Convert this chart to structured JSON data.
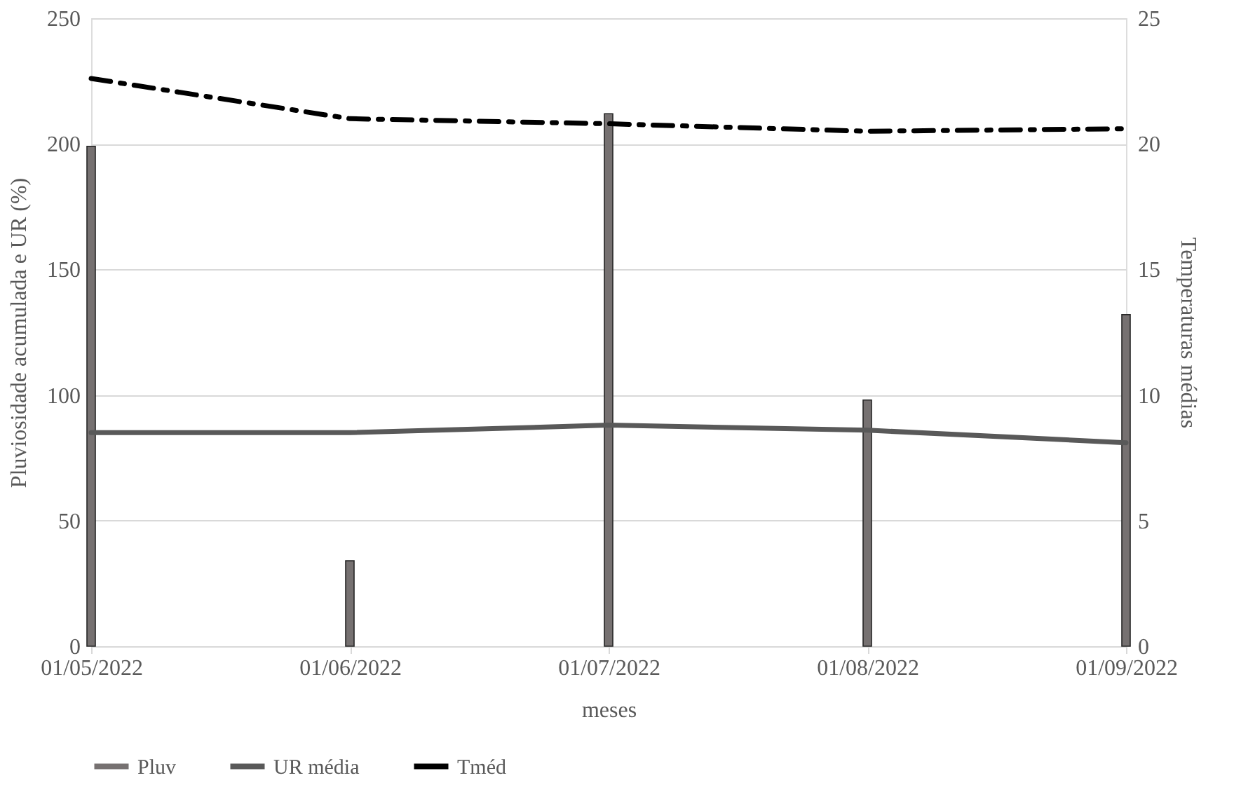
{
  "chart_data": {
    "type": "bar",
    "xlabel": "meses",
    "ylabel": "Pluviosidade acumulada e UR (%)",
    "y2label": "Temperaturas médias",
    "categories": [
      "01/05/2022",
      "01/06/2022",
      "01/07/2022",
      "01/08/2022",
      "01/09/2022"
    ],
    "series": [
      {
        "name": "Pluv",
        "color": "#767171",
        "values": [
          199,
          34,
          212,
          98,
          132
        ]
      },
      {
        "name": "UR média",
        "type": "line",
        "color": "#595959",
        "line_style": "solid",
        "values": [
          85,
          85,
          88,
          86,
          81
        ]
      },
      {
        "name": "Tméd",
        "type": "line",
        "axis": "y2",
        "color": "#000000",
        "line_style": "dashed",
        "values": [
          22.6,
          21.0,
          20.8,
          20.5,
          20.6
        ]
      }
    ],
    "ylim": [
      0,
      250
    ],
    "yticks": [
      0,
      50,
      100,
      150,
      200,
      250
    ],
    "y2lim": [
      0,
      25
    ],
    "y2ticks": [
      0,
      5,
      10,
      15,
      20,
      25
    ],
    "grid": "y",
    "legend": "bottom",
    "marker": "none"
  }
}
